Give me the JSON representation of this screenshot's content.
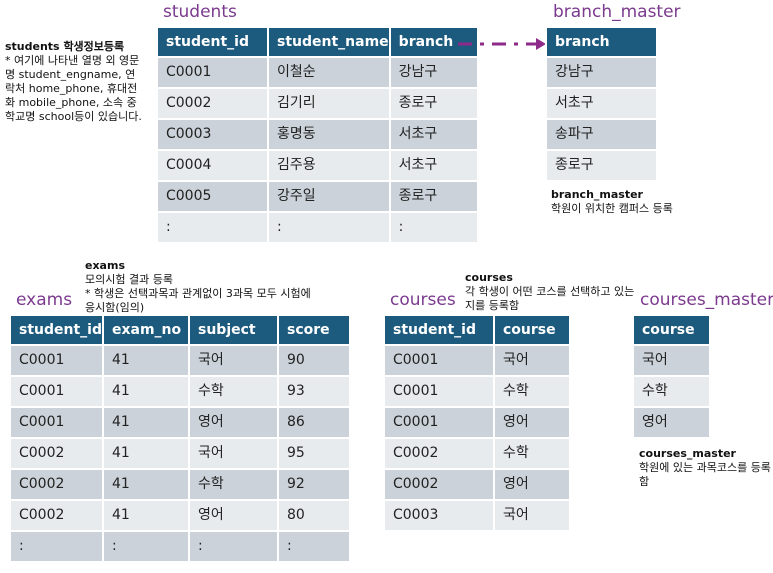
{
  "students": {
    "title": "students",
    "note_title": "students 학생정보등록",
    "note": "* 여기에 나타낸 열명 외 영문명 student_engname, 연락처 home_phone, 휴대전화 mobile_phone, 소속 중학교명 school등이 있습니다.",
    "columns": [
      "student_id",
      "student_name",
      "branch"
    ],
    "rows": [
      [
        "C0001",
        "이철순",
        "강남구"
      ],
      [
        "C0002",
        "김기리",
        "종로구"
      ],
      [
        "C0003",
        "홍명동",
        "서초구"
      ],
      [
        "C0004",
        "김주용",
        "서초구"
      ],
      [
        "C0005",
        "강주일",
        "종로구"
      ],
      [
        ":",
        ":",
        ":"
      ]
    ]
  },
  "branch_master": {
    "title": "branch_master",
    "note_title": "branch_master",
    "note": "학원이 위치한 캠퍼스 등록",
    "columns": [
      "branch"
    ],
    "rows": [
      [
        "강남구"
      ],
      [
        "서초구"
      ],
      [
        "송파구"
      ],
      [
        "종로구"
      ]
    ]
  },
  "exams": {
    "title": "exams",
    "note_title": "exams",
    "note": "모의시험 결과 등록\n* 학생은 선택과목과 관계없이 3과목 모두 시험에 응시함(임의)",
    "columns": [
      "student_id",
      "exam_no",
      "subject",
      "score"
    ],
    "rows": [
      [
        "C0001",
        "41",
        "국어",
        "90"
      ],
      [
        "C0001",
        "41",
        "수학",
        "93"
      ],
      [
        "C0001",
        "41",
        "영어",
        "86"
      ],
      [
        "C0002",
        "41",
        "국어",
        "95"
      ],
      [
        "C0002",
        "41",
        "수학",
        "92"
      ],
      [
        "C0002",
        "41",
        "영어",
        "80"
      ],
      [
        ":",
        ":",
        ":",
        ":"
      ]
    ]
  },
  "courses": {
    "title": "courses",
    "note_title": "courses",
    "note": "각 학생이 어떤 코스를 선택하고 있는지를 등록함",
    "columns": [
      "student_id",
      "course"
    ],
    "rows": [
      [
        "C0001",
        "국어"
      ],
      [
        "C0001",
        "수학"
      ],
      [
        "C0001",
        "영어"
      ],
      [
        "C0002",
        "수학"
      ],
      [
        "C0002",
        "영어"
      ],
      [
        "C0003",
        "국어"
      ]
    ]
  },
  "courses_master": {
    "title": "courses_master",
    "note_title": "courses_master",
    "note": "학원에 있는 과목코스를 등록함",
    "columns": [
      "course"
    ],
    "rows": [
      [
        "국어"
      ],
      [
        "수학"
      ],
      [
        "영어"
      ]
    ]
  },
  "colors": {
    "header": "#1d5b7e",
    "row_dark": "#cbd2d9",
    "row_light": "#e8ebee",
    "title": "#7b3a8e",
    "arrow": "#8e2a8a"
  }
}
